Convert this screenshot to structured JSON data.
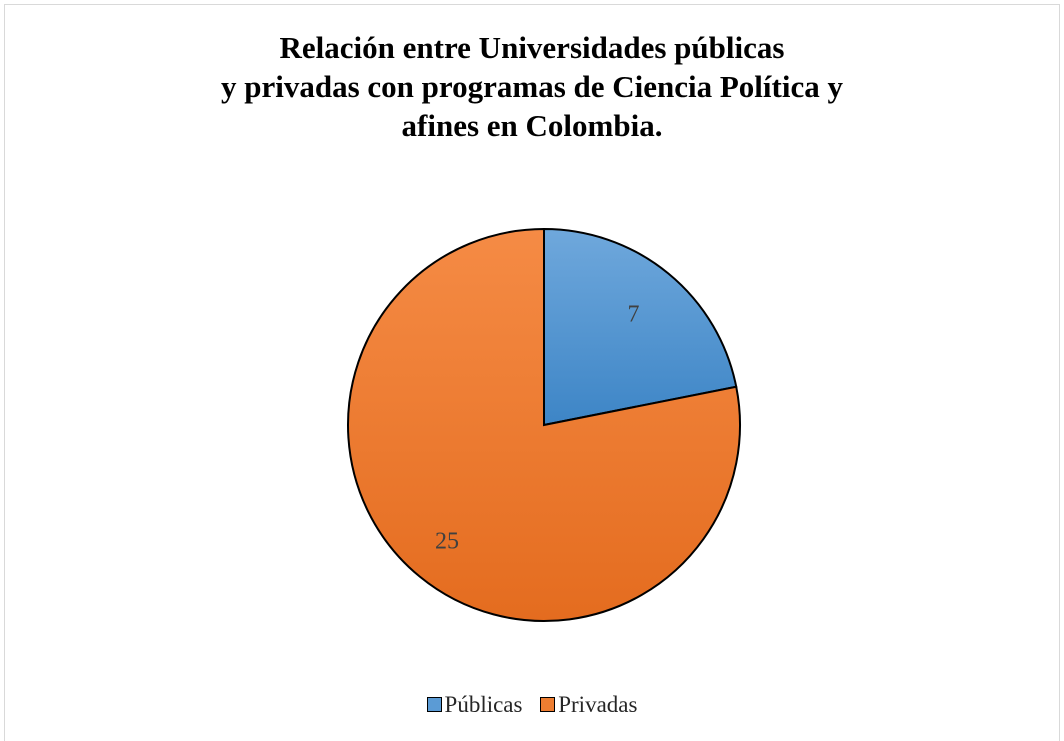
{
  "chart_data": {
    "type": "pie",
    "title_lines": [
      "Relación entre Universidades públicas",
      "y privadas con programas de Ciencia Política y",
      "afines en Colombia."
    ],
    "categories": [
      "Públicas",
      "Privadas"
    ],
    "values": [
      7,
      25
    ],
    "colors": [
      "#5B9BD5",
      "#ED7D31"
    ],
    "data_labels": [
      "7",
      "25"
    ],
    "legend_position": "bottom"
  }
}
